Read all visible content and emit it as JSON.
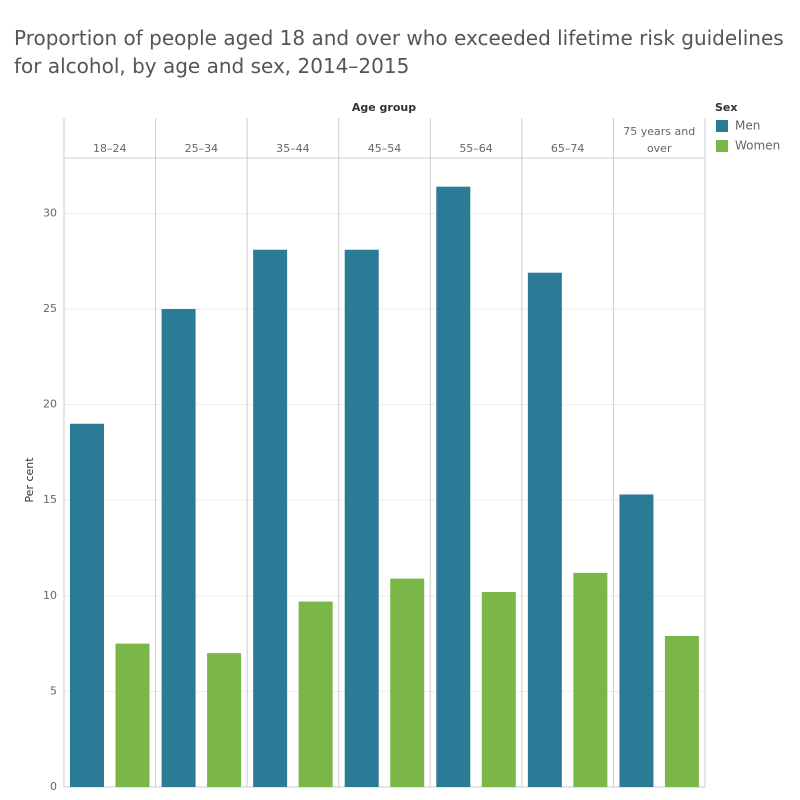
{
  "chart_data": {
    "type": "bar",
    "title": "Proportion of people aged 18 and over who exceeded lifetime risk guidelines for alcohol, by age and sex, 2014–2015",
    "x_axis_label": "Age group",
    "y_axis_label": "Per cent",
    "legend_title": "Sex",
    "categories": [
      "18–24",
      "25–34",
      "35–44",
      "45–54",
      "55–64",
      "65–74",
      "75 years and over"
    ],
    "series": [
      {
        "name": "Men",
        "color": "#2b7b96",
        "values": [
          19.0,
          25.0,
          28.1,
          28.1,
          31.4,
          26.9,
          15.3
        ]
      },
      {
        "name": "Women",
        "color": "#7ab648",
        "values": [
          7.5,
          7.0,
          9.7,
          10.9,
          10.2,
          11.2,
          7.9
        ]
      }
    ],
    "ylim": [
      0,
      32.9
    ],
    "yticks": [
      0,
      5,
      10,
      15,
      20,
      25,
      30
    ],
    "grid": true
  }
}
